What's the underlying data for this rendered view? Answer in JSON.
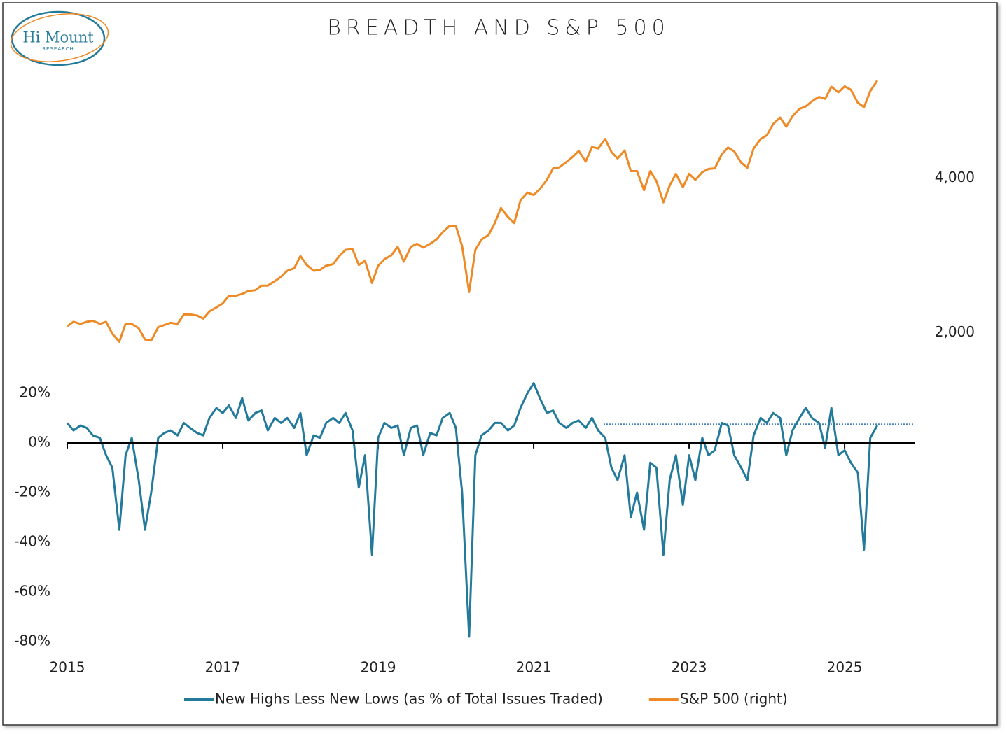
{
  "chart_data": {
    "type": "line",
    "title": "BREADTH AND S&P 500",
    "logo_text": "Hi Mount",
    "logo_subtext": "RESEARCH",
    "x": [
      2015.0,
      2015.08,
      2015.17,
      2015.25,
      2015.33,
      2015.42,
      2015.5,
      2015.58,
      2015.67,
      2015.75,
      2015.83,
      2015.92,
      2016.0,
      2016.08,
      2016.17,
      2016.25,
      2016.33,
      2016.42,
      2016.5,
      2016.58,
      2016.67,
      2016.75,
      2016.83,
      2016.92,
      2017.0,
      2017.08,
      2017.17,
      2017.25,
      2017.33,
      2017.42,
      2017.5,
      2017.58,
      2017.67,
      2017.75,
      2017.83,
      2017.92,
      2018.0,
      2018.08,
      2018.17,
      2018.25,
      2018.33,
      2018.42,
      2018.5,
      2018.58,
      2018.67,
      2018.75,
      2018.83,
      2018.92,
      2019.0,
      2019.08,
      2019.17,
      2019.25,
      2019.33,
      2019.42,
      2019.5,
      2019.58,
      2019.67,
      2019.75,
      2019.83,
      2019.92,
      2020.0,
      2020.08,
      2020.17,
      2020.25,
      2020.33,
      2020.42,
      2020.5,
      2020.58,
      2020.67,
      2020.75,
      2020.83,
      2020.92,
      2021.0,
      2021.08,
      2021.17,
      2021.25,
      2021.33,
      2021.42,
      2021.5,
      2021.58,
      2021.67,
      2021.75,
      2021.83,
      2021.92,
      2022.0,
      2022.08,
      2022.17,
      2022.25,
      2022.33,
      2022.42,
      2022.5,
      2022.58,
      2022.67,
      2022.75,
      2022.83,
      2022.92,
      2023.0,
      2023.08,
      2023.17,
      2023.25,
      2023.33,
      2023.42,
      2023.5,
      2023.58,
      2023.67,
      2023.75,
      2023.83,
      2023.92,
      2024.0,
      2024.08,
      2024.17,
      2024.25,
      2024.33,
      2024.42,
      2024.5,
      2024.58,
      2024.67,
      2024.75,
      2024.83,
      2024.92,
      2025.0,
      2025.08,
      2025.17,
      2025.25,
      2025.33,
      2025.42
    ],
    "series": [
      {
        "name": "New Highs Less New Lows (as % of Total Issues Traded)",
        "color": "#237a9a",
        "axis": "y",
        "values": [
          8,
          5,
          7,
          6,
          3,
          2,
          -5,
          -10,
          -35,
          -5,
          2,
          -15,
          -35,
          -20,
          2,
          4,
          5,
          3,
          8,
          6,
          4,
          3,
          10,
          14,
          12,
          15,
          10,
          18,
          9,
          12,
          13,
          5,
          10,
          8,
          10,
          6,
          12,
          -5,
          3,
          2,
          8,
          10,
          8,
          12,
          5,
          -18,
          -5,
          -45,
          2,
          8,
          6,
          7,
          -5,
          6,
          7,
          -5,
          4,
          3,
          10,
          12,
          6,
          -20,
          -78,
          -5,
          3,
          5,
          8,
          8,
          5,
          7,
          14,
          20,
          24,
          18,
          12,
          13,
          8,
          6,
          8,
          9,
          6,
          10,
          5,
          2,
          -10,
          -15,
          -5,
          -30,
          -20,
          -35,
          -8,
          -10,
          -45,
          -15,
          -5,
          -25,
          -5,
          -15,
          2,
          -5,
          -3,
          8,
          7,
          -5,
          -10,
          -15,
          3,
          10,
          8,
          12,
          10,
          -5,
          5,
          10,
          14,
          10,
          8,
          -2,
          14,
          -5,
          -3,
          -8,
          -12,
          -43,
          2,
          7
        ]
      },
      {
        "name": "S&P 500 (right)",
        "color": "#ee8a25",
        "axis": "y2",
        "values": [
          2058,
          2100,
          2080,
          2100,
          2110,
          2080,
          2100,
          1990,
          1920,
          2080,
          2080,
          2040,
          1940,
          1930,
          2050,
          2070,
          2090,
          2080,
          2170,
          2170,
          2160,
          2130,
          2200,
          2240,
          2280,
          2360,
          2360,
          2380,
          2410,
          2420,
          2470,
          2470,
          2520,
          2570,
          2640,
          2670,
          2820,
          2710,
          2640,
          2650,
          2700,
          2720,
          2820,
          2900,
          2910,
          2710,
          2760,
          2500,
          2700,
          2780,
          2830,
          2940,
          2750,
          2940,
          2980,
          2930,
          2980,
          3040,
          3140,
          3230,
          3230,
          2950,
          2400,
          2900,
          3040,
          3100,
          3270,
          3500,
          3360,
          3270,
          3620,
          3750,
          3710,
          3810,
          3970,
          4180,
          4200,
          4300,
          4400,
          4520,
          4310,
          4600,
          4570,
          4770,
          4500,
          4370,
          4530,
          4130,
          4130,
          3790,
          4130,
          3950,
          3590,
          3870,
          4080,
          3840,
          4080,
          3970,
          4110,
          4170,
          4180,
          4450,
          4590,
          4510,
          4290,
          4190,
          4570,
          4770,
          4850,
          5100,
          5250,
          5040,
          5280,
          5460,
          5520,
          5650,
          5760,
          5710,
          6030,
          5880,
          6040,
          5950,
          5610,
          5500,
          5910,
          6200
        ]
      }
    ],
    "xlim": [
      2015,
      2025.9
    ],
    "xticks": [
      2015,
      2017,
      2019,
      2021,
      2023,
      2025
    ],
    "ylim": [
      -80,
      150
    ],
    "yticks": [
      {
        "value": -80,
        "label": "-80%"
      },
      {
        "value": -60,
        "label": "-60%"
      },
      {
        "value": -40,
        "label": "-40%"
      },
      {
        "value": -20,
        "label": "-20%"
      },
      {
        "value": 0,
        "label": "0%"
      },
      {
        "value": 20,
        "label": "20%"
      }
    ],
    "y2lim": [
      500,
      6500
    ],
    "y2log": true,
    "y2ticks": [
      {
        "value": 2000,
        "label": "2,000"
      },
      {
        "value": 4000,
        "label": "4,000"
      }
    ],
    "reference_line": {
      "value": 7.5,
      "x": [
        2021.9,
        2025.9
      ],
      "color": "#2a6fb0"
    },
    "legend": "bottom"
  }
}
